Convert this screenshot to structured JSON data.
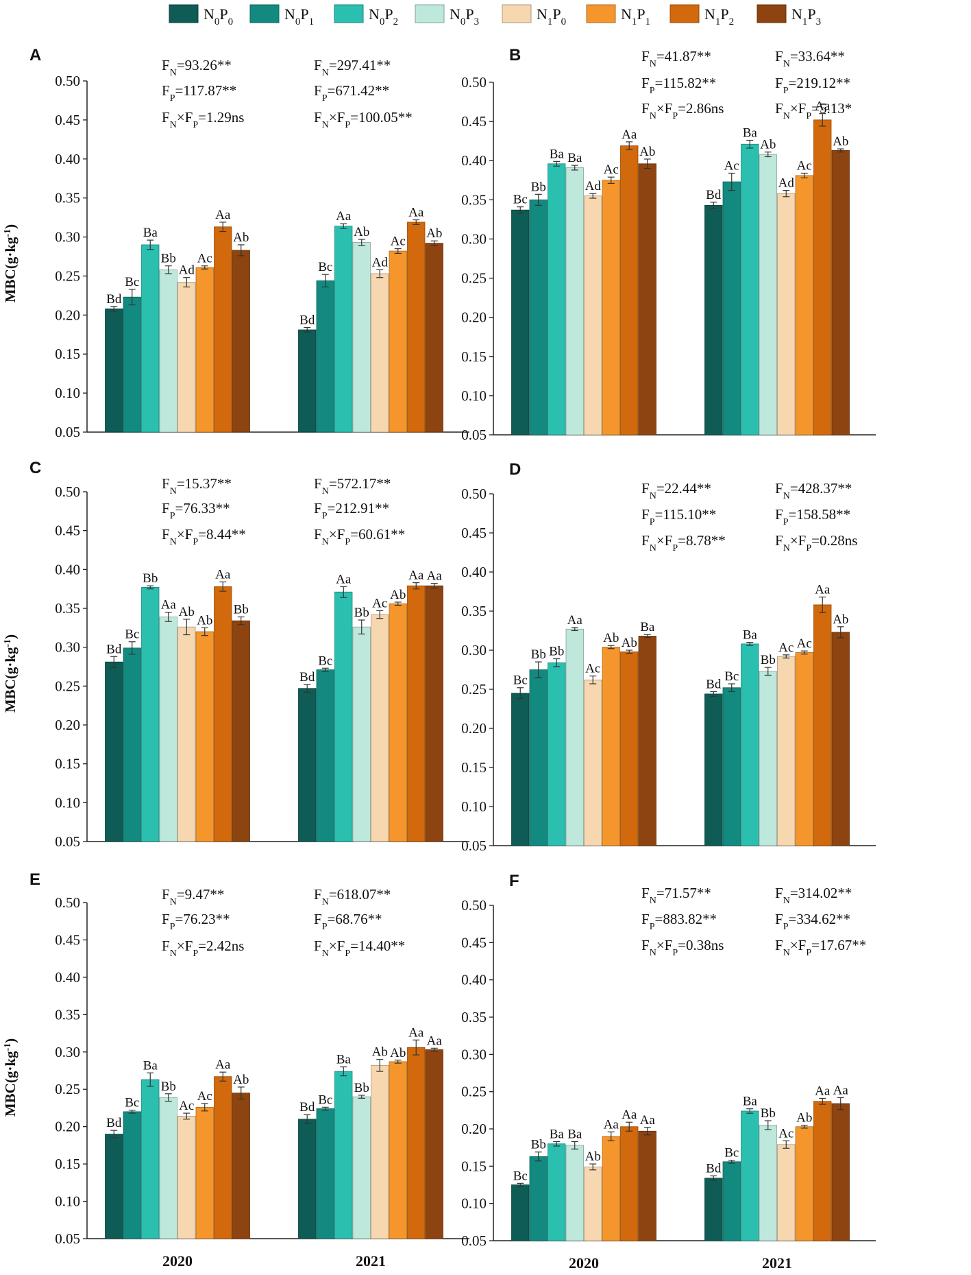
{
  "legend": [
    {
      "label": "N0P0",
      "color": "#0e5c55"
    },
    {
      "label": "N0P1",
      "color": "#128a80"
    },
    {
      "label": "N0P2",
      "color": "#2bbfb0"
    },
    {
      "label": "N0P3",
      "color": "#bfe8dc"
    },
    {
      "label": "N1P0",
      "color": "#f6d7b0"
    },
    {
      "label": "N1P1",
      "color": "#f5962c"
    },
    {
      "label": "N1P2",
      "color": "#d2690c"
    },
    {
      "label": "N1P3",
      "color": "#8e4410"
    }
  ],
  "chart_data": [
    {
      "panel": "A",
      "type": "bar",
      "ylabel": "MBC(g·kg-1)",
      "ylim": [
        0.05,
        0.5
      ],
      "yticks": [
        "0.05",
        "0.10",
        "0.15",
        "0.20",
        "0.25",
        "0.30",
        "0.35",
        "0.40",
        "0.45",
        "0.50"
      ],
      "categories": [
        "2020",
        "2021"
      ],
      "series_names": [
        "N0P0",
        "N0P1",
        "N0P2",
        "N0P3",
        "N1P0",
        "N1P1",
        "N1P2",
        "N1P3"
      ],
      "values": [
        [
          0.208,
          0.223,
          0.29,
          0.258,
          0.242,
          0.261,
          0.313,
          0.283
        ],
        [
          0.181,
          0.244,
          0.314,
          0.293,
          0.253,
          0.282,
          0.319,
          0.292
        ]
      ],
      "errors": [
        [
          0.003,
          0.01,
          0.006,
          0.005,
          0.006,
          0.002,
          0.006,
          0.007
        ],
        [
          0.003,
          0.008,
          0.003,
          0.004,
          0.005,
          0.003,
          0.003,
          0.003
        ]
      ],
      "labels": [
        [
          "Bd",
          "Bc",
          "Ba",
          "Bb",
          "Ad",
          "Ac",
          "Aa",
          "Ab"
        ],
        [
          "Bd",
          "Bc",
          "Aa",
          "Ab",
          "Ad",
          "Ac",
          "Aa",
          "Ab"
        ]
      ],
      "stats": [
        {
          "fn": "93.26**",
          "fp": "117.87**",
          "fnp": "1.29ns"
        },
        {
          "fn": "297.41**",
          "fp": "671.42**",
          "fnp": "100.05**"
        }
      ]
    },
    {
      "panel": "B",
      "type": "bar",
      "ylabel": "",
      "ylim": [
        0.05,
        0.5
      ],
      "yticks": [
        "0.05",
        "0.10",
        "0.15",
        "0.20",
        "0.25",
        "0.30",
        "0.35",
        "0.40",
        "0.45",
        "0.50"
      ],
      "categories": [
        "2020",
        "2021"
      ],
      "series_names": [
        "N0P0",
        "N0P1",
        "N0P2",
        "N0P3",
        "N1P0",
        "N1P1",
        "N1P2",
        "N1P3"
      ],
      "values": [
        [
          0.337,
          0.35,
          0.396,
          0.391,
          0.355,
          0.375,
          0.419,
          0.396
        ],
        [
          0.343,
          0.373,
          0.421,
          0.408,
          0.358,
          0.381,
          0.452,
          0.413
        ]
      ],
      "errors": [
        [
          0.004,
          0.007,
          0.003,
          0.003,
          0.003,
          0.004,
          0.005,
          0.006
        ],
        [
          0.004,
          0.011,
          0.005,
          0.003,
          0.004,
          0.003,
          0.008,
          0.002
        ]
      ],
      "labels": [
        [
          "Bc",
          "Bb",
          "Ba",
          "Ba",
          "Ad",
          "Ac",
          "Aa",
          "Ab"
        ],
        [
          "Bd",
          "Ac",
          "Ba",
          "Ab",
          "Ad",
          "Ac",
          "Aa",
          "Ab"
        ]
      ],
      "stats": [
        {
          "fn": "41.87**",
          "fp": "115.82**",
          "fnp": "2.86ns"
        },
        {
          "fn": "33.64**",
          "fp": "219.12**",
          "fnp": "5.13*"
        }
      ]
    },
    {
      "panel": "C",
      "type": "bar",
      "ylabel": "MBC(g·kg-1)",
      "ylim": [
        0.05,
        0.5
      ],
      "yticks": [
        "0.05",
        "0.10",
        "0.15",
        "0.20",
        "0.25",
        "0.30",
        "0.35",
        "0.40",
        "0.45",
        "0.50"
      ],
      "categories": [
        "2020",
        "2021"
      ],
      "series_names": [
        "N0P0",
        "N0P1",
        "N0P2",
        "N0P3",
        "N1P0",
        "N1P1",
        "N1P2",
        "N1P3"
      ],
      "values": [
        [
          0.281,
          0.299,
          0.377,
          0.339,
          0.326,
          0.32,
          0.378,
          0.334
        ],
        [
          0.247,
          0.271,
          0.371,
          0.326,
          0.342,
          0.356,
          0.379,
          0.379
        ]
      ],
      "errors": [
        [
          0.007,
          0.008,
          0.002,
          0.006,
          0.01,
          0.005,
          0.006,
          0.005
        ],
        [
          0.005,
          0.002,
          0.007,
          0.009,
          0.005,
          0.002,
          0.004,
          0.003
        ]
      ],
      "labels": [
        [
          "Bd",
          "Bc",
          "Bb",
          "Aa",
          "Ab",
          "Ab",
          "Aa",
          "Bb"
        ],
        [
          "Bd",
          "Bc",
          "Aa",
          "Bb",
          "Ac",
          "Ab",
          "Aa",
          "Aa"
        ]
      ],
      "stats": [
        {
          "fn": "15.37**",
          "fp": "76.33**",
          "fnp": "8.44**"
        },
        {
          "fn": "572.17**",
          "fp": "212.91**",
          "fnp": "60.61**"
        }
      ]
    },
    {
      "panel": "D",
      "type": "bar",
      "ylabel": "",
      "ylim": [
        0.05,
        0.5
      ],
      "yticks": [
        "0.05",
        "0.10",
        "0.15",
        "0.20",
        "0.25",
        "0.30",
        "0.35",
        "0.40",
        "0.45",
        "0.50"
      ],
      "categories": [
        "2020",
        "2021"
      ],
      "series_names": [
        "N0P0",
        "N0P1",
        "N0P2",
        "N0P3",
        "N1P0",
        "N1P1",
        "N1P2",
        "N1P3"
      ],
      "values": [
        [
          0.245,
          0.275,
          0.284,
          0.327,
          0.262,
          0.304,
          0.298,
          0.318
        ],
        [
          0.244,
          0.252,
          0.308,
          0.273,
          0.292,
          0.297,
          0.358,
          0.323
        ]
      ],
      "errors": [
        [
          0.007,
          0.01,
          0.005,
          0.002,
          0.005,
          0.002,
          0.002,
          0.002
        ],
        [
          0.003,
          0.005,
          0.002,
          0.005,
          0.002,
          0.002,
          0.01,
          0.007
        ]
      ],
      "labels": [
        [
          "Bc",
          "Bb",
          "Bb",
          "Aa",
          "Ac",
          "Ab",
          "Ab",
          "Ba"
        ],
        [
          "Bd",
          "Bc",
          "Ba",
          "Bb",
          "Ac",
          "Ac",
          "Aa",
          "Ab"
        ]
      ],
      "stats": [
        {
          "fn": "22.44**",
          "fp": "115.10**",
          "fnp": "8.78**"
        },
        {
          "fn": "428.37**",
          "fp": "158.58**",
          "fnp": "0.28ns"
        }
      ]
    },
    {
      "panel": "E",
      "type": "bar",
      "ylabel": "MBC(g·kg-1)",
      "ylim": [
        0.05,
        0.5
      ],
      "yticks": [
        "0.05",
        "0.10",
        "0.15",
        "0.20",
        "0.25",
        "0.30",
        "0.35",
        "0.40",
        "0.45",
        "0.50"
      ],
      "categories": [
        "2020",
        "2021"
      ],
      "series_names": [
        "N0P0",
        "N0P1",
        "N0P2",
        "N0P3",
        "N1P0",
        "N1P1",
        "N1P2",
        "N1P3"
      ],
      "values": [
        [
          0.19,
          0.22,
          0.263,
          0.239,
          0.214,
          0.226,
          0.267,
          0.245
        ],
        [
          0.21,
          0.224,
          0.274,
          0.24,
          0.282,
          0.287,
          0.306,
          0.303
        ]
      ],
      "errors": [
        [
          0.005,
          0.002,
          0.009,
          0.005,
          0.004,
          0.005,
          0.006,
          0.008
        ],
        [
          0.006,
          0.002,
          0.006,
          0.002,
          0.008,
          0.002,
          0.01,
          0.002
        ]
      ],
      "labels": [
        [
          "Bd",
          "Bc",
          "Ba",
          "Bb",
          "Ac",
          "Ac",
          "Aa",
          "Ab"
        ],
        [
          "Bd",
          "Bc",
          "Ba",
          "Bb",
          "Ab",
          "Ab",
          "Aa",
          "Aa"
        ]
      ],
      "stats": [
        {
          "fn": "9.47**",
          "fp": "76.23**",
          "fnp": "2.42ns"
        },
        {
          "fn": "618.07**",
          "fp": "68.76**",
          "fnp": "14.40**"
        }
      ]
    },
    {
      "panel": "F",
      "type": "bar",
      "ylabel": "",
      "ylim": [
        0.05,
        0.5
      ],
      "yticks": [
        "0.05",
        "0.10",
        "0.15",
        "0.20",
        "0.25",
        "0.30",
        "0.35",
        "0.40",
        "0.45",
        "0.50"
      ],
      "categories": [
        "2020",
        "2021"
      ],
      "series_names": [
        "N0P0",
        "N0P1",
        "N0P2",
        "N0P3",
        "N1P0",
        "N1P1",
        "N1P2",
        "N1P3"
      ],
      "values": [
        [
          0.125,
          0.163,
          0.18,
          0.178,
          0.149,
          0.19,
          0.203,
          0.197
        ],
        [
          0.134,
          0.156,
          0.224,
          0.205,
          0.179,
          0.203,
          0.237,
          0.234
        ]
      ],
      "errors": [
        [
          0.002,
          0.006,
          0.003,
          0.005,
          0.004,
          0.006,
          0.006,
          0.005
        ],
        [
          0.003,
          0.002,
          0.003,
          0.006,
          0.005,
          0.002,
          0.004,
          0.008
        ]
      ],
      "labels": [
        [
          "Bc",
          "Bb",
          "Ba",
          "Ba",
          "Ab",
          "Aa",
          "Aa",
          "Aa"
        ],
        [
          "Bd",
          "Bc",
          "Ba",
          "Bb",
          "Ac",
          "Ab",
          "Aa",
          "Aa"
        ]
      ],
      "stats": [
        {
          "fn": "71.57**",
          "fp": "883.82**",
          "fnp": "0.38ns"
        },
        {
          "fn": "314.02**",
          "fp": "334.62**",
          "fnp": "17.67**"
        }
      ]
    }
  ]
}
